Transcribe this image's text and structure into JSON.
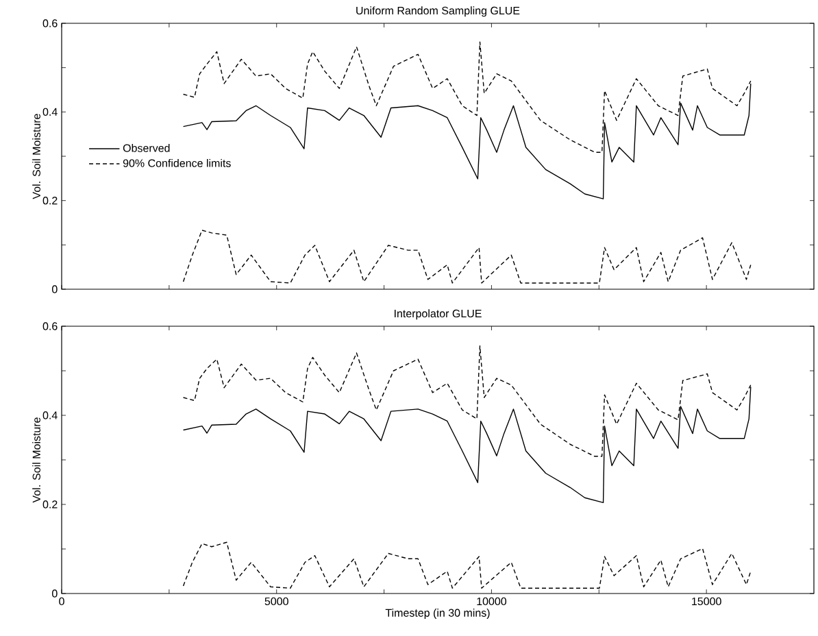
{
  "chart_data": [
    {
      "type": "line",
      "title": "Uniform Random Sampling GLUE",
      "ylabel": "Vol. Soil Moisture",
      "xlim": [
        0,
        17500
      ],
      "ylim": [
        0,
        0.6
      ],
      "xticks": [
        0,
        {
          "value": 2500,
          "label": null
        },
        5000,
        {
          "value": 7500,
          "label": null
        },
        10000,
        {
          "value": 12500,
          "label": null
        },
        15000
      ],
      "yticks": [
        0,
        {
          "value": 0.1,
          "label": null
        },
        0.2,
        {
          "value": 0.3,
          "label": null
        },
        0.4,
        {
          "value": 0.5,
          "label": null
        },
        0.6
      ],
      "tick_labels": "y",
      "legend": "left",
      "marker": "none",
      "series": [
        {
          "name": "Observed",
          "color": "#000000",
          "line_style": "solid",
          "x": [
            2830,
            3265,
            3380,
            3490,
            4060,
            4290,
            4520,
            4860,
            5320,
            5640,
            5720,
            6120,
            6460,
            6690,
            7030,
            7430,
            7660,
            8290,
            8630,
            8970,
            9320,
            9680,
            9750,
            9890,
            10120,
            10290,
            10510,
            10800,
            11260,
            11830,
            12170,
            12600,
            12630,
            12800,
            12970,
            13310,
            13370,
            13770,
            13940,
            14340,
            14400,
            14680,
            14790,
            15020,
            15310,
            15880,
            15990,
            16030
          ],
          "values": [
            0.367,
            0.376,
            0.36,
            0.378,
            0.38,
            0.403,
            0.414,
            0.392,
            0.365,
            0.317,
            0.409,
            0.403,
            0.381,
            0.409,
            0.392,
            0.343,
            0.409,
            0.414,
            0.403,
            0.387,
            0.32,
            0.249,
            0.387,
            0.359,
            0.309,
            0.359,
            0.414,
            0.32,
            0.27,
            0.238,
            0.215,
            0.204,
            0.376,
            0.287,
            0.32,
            0.287,
            0.414,
            0.348,
            0.387,
            0.326,
            0.42,
            0.359,
            0.414,
            0.365,
            0.348,
            0.348,
            0.392,
            0.464
          ]
        },
        {
          "name": "90% Confidence limits",
          "color": "#000000",
          "line_style": "dashed",
          "x": [
            2830,
            3090,
            3210,
            3380,
            3610,
            3780,
            4180,
            4520,
            4860,
            5210,
            5610,
            5720,
            5840,
            6120,
            6460,
            6860,
            7150,
            7320,
            7720,
            8290,
            8630,
            8970,
            9320,
            9660,
            9730,
            9830,
            10120,
            10460,
            11140,
            11830,
            12400,
            12570,
            12630,
            12910,
            13370,
            13880,
            14340,
            14450,
            15020,
            15140,
            15710,
            15880,
            16030
          ],
          "values": [
            0.44,
            0.433,
            0.486,
            0.508,
            0.536,
            0.464,
            0.519,
            0.481,
            0.486,
            0.453,
            0.431,
            0.508,
            0.536,
            0.492,
            0.453,
            0.547,
            0.459,
            0.414,
            0.503,
            0.53,
            0.453,
            0.475,
            0.414,
            0.392,
            0.558,
            0.442,
            0.486,
            0.47,
            0.381,
            0.337,
            0.309,
            0.309,
            0.448,
            0.381,
            0.475,
            0.414,
            0.392,
            0.481,
            0.497,
            0.453,
            0.414,
            0.442,
            0.47
          ]
        },
        {
          "color": "#000000",
          "line_style": "dashed",
          "x": [
            2830,
            3040,
            3265,
            3490,
            3840,
            4060,
            4410,
            4860,
            5320,
            5660,
            5890,
            6230,
            6800,
            7030,
            7600,
            8060,
            8290,
            8520,
            8970,
            9090,
            9710,
            9770,
            10460,
            10680,
            12510,
            12630,
            12850,
            13370,
            13540,
            13940,
            14110,
            14400,
            14910,
            15140,
            15590,
            15930,
            16030
          ],
          "values": [
            0.017,
            0.077,
            0.133,
            0.127,
            0.122,
            0.033,
            0.077,
            0.017,
            0.014,
            0.077,
            0.099,
            0.017,
            0.088,
            0.017,
            0.099,
            0.088,
            0.088,
            0.022,
            0.055,
            0.014,
            0.094,
            0.014,
            0.077,
            0.014,
            0.014,
            0.094,
            0.044,
            0.094,
            0.017,
            0.083,
            0.017,
            0.088,
            0.116,
            0.022,
            0.105,
            0.022,
            0.055
          ]
        }
      ]
    },
    {
      "type": "line",
      "title": "Interpolator GLUE",
      "xlabel": "Timestep (in 30 mins)",
      "ylabel": "Vol. Soil Moisture",
      "xlim": [
        0,
        17500
      ],
      "ylim": [
        0,
        0.6
      ],
      "xticks": [
        0,
        {
          "value": 2500,
          "label": null
        },
        5000,
        {
          "value": 7500,
          "label": null
        },
        10000,
        {
          "value": 12500,
          "label": null
        },
        15000
      ],
      "yticks": [
        0,
        {
          "value": 0.1,
          "label": null
        },
        0.2,
        {
          "value": 0.3,
          "label": null
        },
        0.4,
        {
          "value": 0.5,
          "label": null
        },
        0.6
      ],
      "marker": "none",
      "series": [
        {
          "color": "#000000",
          "line_style": "solid",
          "x": [
            2830,
            3265,
            3380,
            3490,
            4060,
            4290,
            4520,
            4860,
            5320,
            5640,
            5720,
            6120,
            6460,
            6690,
            7030,
            7430,
            7660,
            8290,
            8630,
            8970,
            9320,
            9680,
            9750,
            9890,
            10120,
            10290,
            10510,
            10800,
            11260,
            11830,
            12170,
            12600,
            12630,
            12800,
            12970,
            13310,
            13370,
            13770,
            13940,
            14340,
            14400,
            14680,
            14790,
            15020,
            15310,
            15880,
            15990,
            16030
          ],
          "values": [
            0.367,
            0.376,
            0.36,
            0.378,
            0.38,
            0.403,
            0.414,
            0.392,
            0.365,
            0.317,
            0.409,
            0.403,
            0.381,
            0.409,
            0.392,
            0.343,
            0.409,
            0.414,
            0.403,
            0.387,
            0.32,
            0.249,
            0.387,
            0.359,
            0.309,
            0.359,
            0.414,
            0.32,
            0.27,
            0.238,
            0.215,
            0.204,
            0.376,
            0.287,
            0.32,
            0.287,
            0.414,
            0.348,
            0.387,
            0.326,
            0.42,
            0.359,
            0.414,
            0.365,
            0.348,
            0.348,
            0.392,
            0.464
          ]
        },
        {
          "color": "#000000",
          "line_style": "dashed",
          "x": [
            2830,
            3090,
            3210,
            3380,
            3610,
            3780,
            4180,
            4520,
            4860,
            5210,
            5610,
            5720,
            5840,
            6120,
            6460,
            6860,
            7150,
            7320,
            7720,
            8290,
            8630,
            8970,
            9320,
            9660,
            9730,
            9830,
            10120,
            10460,
            11140,
            11830,
            12400,
            12570,
            12630,
            12910,
            13370,
            13880,
            14340,
            14450,
            15020,
            15140,
            15710,
            15880,
            16030
          ],
          "values": [
            0.44,
            0.433,
            0.483,
            0.505,
            0.526,
            0.462,
            0.515,
            0.479,
            0.483,
            0.451,
            0.43,
            0.505,
            0.53,
            0.49,
            0.451,
            0.54,
            0.457,
            0.412,
            0.5,
            0.526,
            0.451,
            0.472,
            0.412,
            0.392,
            0.556,
            0.44,
            0.483,
            0.468,
            0.38,
            0.335,
            0.308,
            0.308,
            0.446,
            0.38,
            0.472,
            0.412,
            0.39,
            0.478,
            0.493,
            0.451,
            0.412,
            0.44,
            0.468
          ]
        },
        {
          "color": "#000000",
          "line_style": "dashed",
          "x": [
            2830,
            3040,
            3265,
            3490,
            3840,
            4060,
            4410,
            4860,
            5320,
            5660,
            5890,
            6230,
            6800,
            7030,
            7600,
            8060,
            8290,
            8520,
            8970,
            9090,
            9710,
            9770,
            10460,
            10680,
            12510,
            12630,
            12850,
            13370,
            13540,
            13940,
            14110,
            14400,
            14910,
            15140,
            15590,
            15930,
            16030
          ],
          "values": [
            0.017,
            0.07,
            0.112,
            0.105,
            0.115,
            0.03,
            0.07,
            0.015,
            0.012,
            0.07,
            0.085,
            0.015,
            0.078,
            0.015,
            0.09,
            0.078,
            0.078,
            0.02,
            0.05,
            0.012,
            0.083,
            0.012,
            0.07,
            0.012,
            0.012,
            0.083,
            0.04,
            0.085,
            0.015,
            0.075,
            0.015,
            0.078,
            0.101,
            0.02,
            0.09,
            0.02,
            0.05
          ]
        }
      ]
    }
  ]
}
